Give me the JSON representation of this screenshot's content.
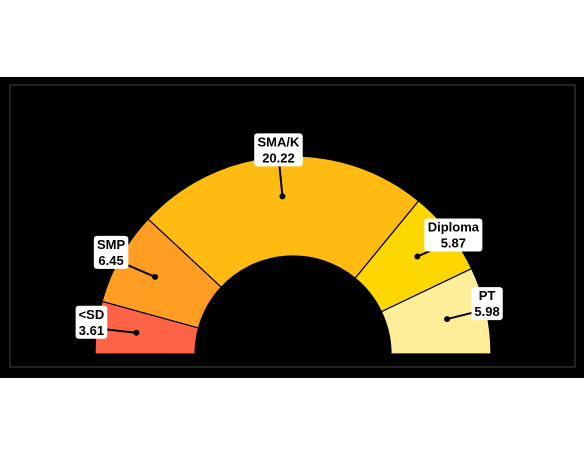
{
  "chart_data": {
    "type": "pie",
    "subtype": "semi-donut",
    "title": "",
    "categories": [
      "<SD",
      "SMP",
      "SMA/K",
      "Diploma",
      "PT"
    ],
    "values": [
      3.61,
      6.45,
      20.22,
      5.87,
      5.98
    ],
    "value_labels": [
      "3.61",
      "6.45",
      "20.22",
      "5.87",
      "5.98"
    ],
    "colors": [
      "#FF6347",
      "#FF9E22",
      "#FFBB11",
      "#FFD700",
      "#FFEE99"
    ],
    "legend": "none",
    "grid": false
  },
  "colors": {
    "page_background": "#ffffff",
    "panel_background": "#000000",
    "panel_border": "#444444",
    "label_background": "#ffffff",
    "text": "#000000"
  }
}
